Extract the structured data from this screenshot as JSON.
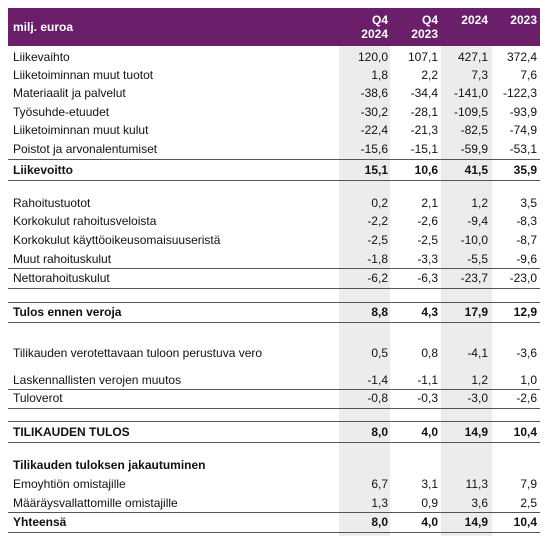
{
  "header": {
    "label": "milj. euroa",
    "columns": [
      "Q4 2024",
      "Q4 2023",
      "2024",
      "2023"
    ]
  },
  "table": {
    "rows": [
      {
        "label": "Liikevaihto",
        "values": [
          "120,0",
          "107,1",
          "427,1",
          "372,4"
        ]
      },
      {
        "label": "Liiketoiminnan muut tuotot",
        "values": [
          "1,8",
          "2,2",
          "7,3",
          "7,6"
        ]
      },
      {
        "label": "Materiaalit ja palvelut",
        "values": [
          "-38,6",
          "-34,4",
          "-141,0",
          "-122,3"
        ]
      },
      {
        "label": "Työsuhde-etuudet",
        "values": [
          "-30,2",
          "-28,1",
          "-109,5",
          "-93,9"
        ]
      },
      {
        "label": "Liiketoiminnan muut kulut",
        "values": [
          "-22,4",
          "-21,3",
          "-82,5",
          "-74,9"
        ]
      },
      {
        "label": "Poistot ja arvonalentumiset",
        "values": [
          "-15,6",
          "-15,1",
          "-59,9",
          "-53,1"
        ]
      },
      {
        "label": "Liikevoitto",
        "values": [
          "15,1",
          "10,6",
          "41,5",
          "35,9"
        ],
        "bold": true
      },
      {
        "label": "Rahoitustuotot",
        "values": [
          "0,2",
          "2,1",
          "1,2",
          "3,5"
        ]
      },
      {
        "label": "Korkokulut rahoitusveloista",
        "values": [
          "-2,2",
          "-2,6",
          "-9,4",
          "-8,3"
        ]
      },
      {
        "label": "Korkokulut käyttöoikeusomaisuuseristä",
        "values": [
          "-2,5",
          "-2,5",
          "-10,0",
          "-8,7"
        ]
      },
      {
        "label": "Muut rahoituskulut",
        "values": [
          "-1,8",
          "-3,3",
          "-5,5",
          "-9,6"
        ]
      },
      {
        "label": "Nettorahoituskulut",
        "values": [
          "-6,2",
          "-6,3",
          "-23,7",
          "-23,0"
        ]
      },
      {
        "label": "Tulos ennen veroja",
        "values": [
          "8,8",
          "4,3",
          "17,9",
          "12,9"
        ],
        "bold": true
      },
      {
        "label": "Tilikauden verotettavaan tuloon perustuva vero",
        "values": [
          "0,5",
          "0,8",
          "-4,1",
          "-3,6"
        ]
      },
      {
        "label": "Laskennallisten verojen muutos",
        "values": [
          "-1,4",
          "-1,1",
          "1,2",
          "1,0"
        ]
      },
      {
        "label": "Tuloverot",
        "values": [
          "-0,8",
          "-0,3",
          "-3,0",
          "-2,6"
        ]
      },
      {
        "label": "TILIKAUDEN TULOS",
        "values": [
          "8,0",
          "4,0",
          "14,9",
          "10,4"
        ],
        "bold": true
      },
      {
        "label": "Tilikauden tuloksen jakautuminen",
        "values": [],
        "bold": true
      },
      {
        "label": "Emoyhtiön omistajille",
        "values": [
          "6,7",
          "3,1",
          "11,3",
          "7,9"
        ]
      },
      {
        "label": "Määräysvallattomille omistajille",
        "values": [
          "1,3",
          "0,9",
          "3,6",
          "2,5"
        ]
      },
      {
        "label": "Yhteensä",
        "values": [
          "8,0",
          "4,0",
          "14,9",
          "10,4"
        ],
        "bold": true
      }
    ]
  }
}
